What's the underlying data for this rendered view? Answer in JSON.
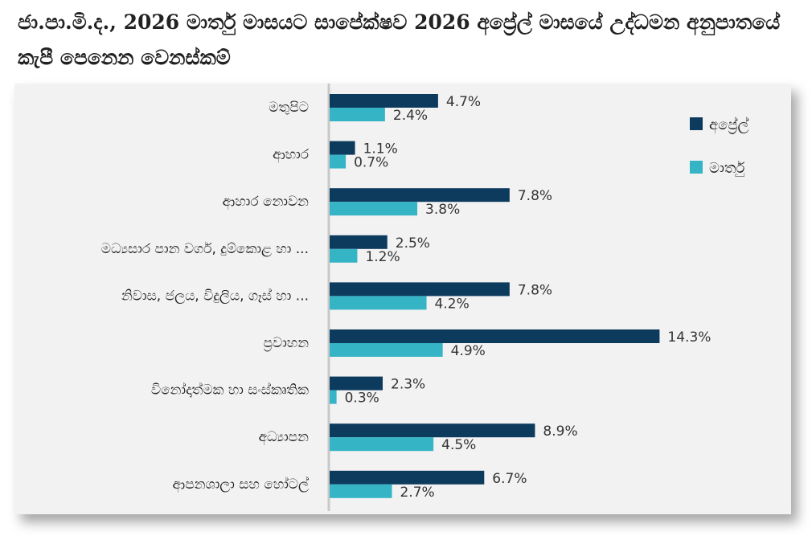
{
  "chart_data": {
    "type": "bar",
    "orientation": "horizontal",
    "title": "ජා.පා.මි.ද., 2026 මාර්තු මාසයට සාපේක්ෂව 2026 අප්‍රේල් මාසයේ උද්ධමන අනුපාතයේ කැපී පෙනෙන වෙනස්කම්",
    "categories": [
      "මතුපිට",
      "ආහාර",
      "ආහාර නොවන",
      "මධ්‍යසාර පාන වර්ග, දුම්කොළ හා ...",
      "නිවාස, ජලය, විදුලිය, ගෑස් හා ...",
      "ප්‍රවාහන",
      "විනෝදාත්මක හා සංස්කෘතික",
      "අධ්‍යාපන",
      "ආපනශාලා සහ හෝටල්"
    ],
    "series": [
      {
        "name": "අප්‍රේල්",
        "color": "#0d3b5e",
        "values": [
          4.7,
          1.1,
          7.8,
          2.5,
          7.8,
          14.3,
          2.3,
          8.9,
          6.7
        ],
        "labels": [
          "4.7%",
          "1.1%",
          "7.8%",
          "2.5%",
          "7.8%",
          "14.3%",
          "2.3%",
          "8.9%",
          "6.7%"
        ]
      },
      {
        "name": "මාර්තු",
        "color": "#35b4c6",
        "values": [
          2.4,
          0.7,
          3.8,
          1.2,
          4.2,
          4.9,
          0.3,
          4.5,
          2.7
        ],
        "labels": [
          "2.4%",
          "0.7%",
          "3.8%",
          "1.2%",
          "4.2%",
          "4.9%",
          "0.3%",
          "4.5%",
          "2.7%"
        ]
      }
    ],
    "unit": "%",
    "xlim": [
      0,
      16
    ],
    "grid": false,
    "legend_position": "top-right"
  }
}
